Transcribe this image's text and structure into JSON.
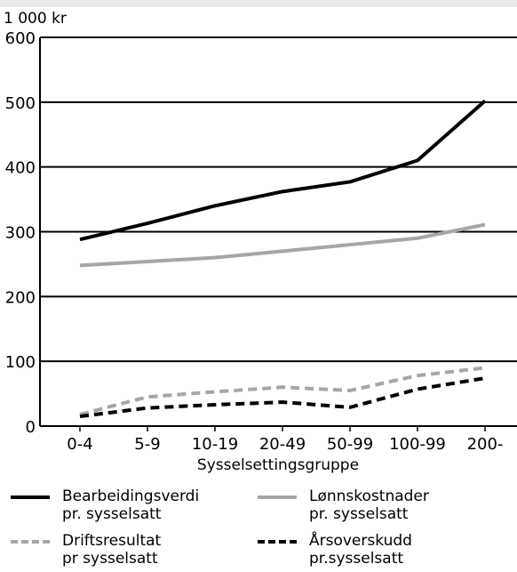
{
  "chart_data": {
    "type": "line",
    "title": "",
    "units_label": "1 000 kr",
    "xlabel": "Sysselsettingsgruppe",
    "ylabel": "",
    "ylim": [
      0,
      600
    ],
    "yticks": [
      "0",
      "100",
      "200",
      "300",
      "400",
      "500",
      "600"
    ],
    "categories": [
      "0-4",
      "5-9",
      "10-19",
      "20-49",
      "50-99",
      "100-99",
      "200-"
    ],
    "grid": "horizontal",
    "legend_position": "bottom",
    "series": [
      {
        "key": "bearbeidingsverdi",
        "name_line1": "Bearbeidingsverdi",
        "name_line2": "pr. sysselsatt",
        "color": "#000000",
        "style": "solid",
        "values": [
          288,
          313,
          340,
          362,
          377,
          410,
          502
        ]
      },
      {
        "key": "lonnskostnader",
        "name_line1": "Lønnskostnader",
        "name_line2": "pr. sysselsatt",
        "color": "#a6a6a6",
        "style": "solid",
        "values": [
          248,
          254,
          260,
          270,
          280,
          290,
          311
        ]
      },
      {
        "key": "driftsresultat",
        "name_line1": "Driftsresultat",
        "name_line2": "pr sysselsatt",
        "color": "#a6a6a6",
        "style": "dashed",
        "values": [
          18,
          45,
          53,
          60,
          55,
          78,
          90
        ]
      },
      {
        "key": "arsoverskudd",
        "name_line1": "Årsoverskudd",
        "name_line2": "pr.sysselsatt",
        "color": "#000000",
        "style": "dashed",
        "values": [
          15,
          28,
          33,
          37,
          29,
          57,
          74
        ]
      }
    ]
  }
}
